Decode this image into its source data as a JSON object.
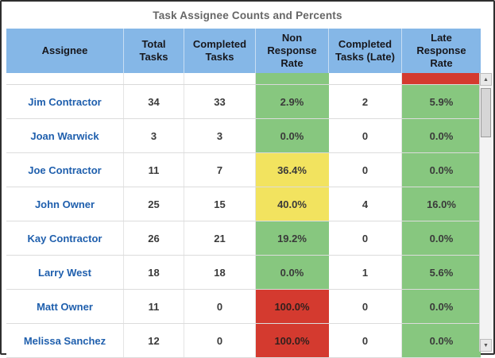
{
  "title": "Task Assignee Counts and Percents",
  "colors": {
    "header_bg": "#85b7e7",
    "green": "#87c77f",
    "yellow": "#f2e35f",
    "red": "#d43a2f",
    "assignee_text": "#1f5fad",
    "title_text": "#666666"
  },
  "table": {
    "columns": [
      "Assignee",
      "Total Tasks",
      "Completed Tasks",
      "Non Response Rate",
      "Completed Tasks (Late)",
      "Late Response Rate"
    ],
    "partial_row": {
      "non_response_color": "green",
      "late_color": "red"
    },
    "rows": [
      {
        "assignee": "Jim Contractor",
        "total": "34",
        "completed": "33",
        "non_response_rate": "2.9%",
        "non_response_color": "green",
        "completed_late": "2",
        "late_rate": "5.9%",
        "late_color": "green"
      },
      {
        "assignee": "Joan Warwick",
        "total": "3",
        "completed": "3",
        "non_response_rate": "0.0%",
        "non_response_color": "green",
        "completed_late": "0",
        "late_rate": "0.0%",
        "late_color": "green"
      },
      {
        "assignee": "Joe Contractor",
        "total": "11",
        "completed": "7",
        "non_response_rate": "36.4%",
        "non_response_color": "yellow",
        "completed_late": "0",
        "late_rate": "0.0%",
        "late_color": "green"
      },
      {
        "assignee": "John Owner",
        "total": "25",
        "completed": "15",
        "non_response_rate": "40.0%",
        "non_response_color": "yellow",
        "completed_late": "4",
        "late_rate": "16.0%",
        "late_color": "green"
      },
      {
        "assignee": "Kay Contractor",
        "total": "26",
        "completed": "21",
        "non_response_rate": "19.2%",
        "non_response_color": "green",
        "completed_late": "0",
        "late_rate": "0.0%",
        "late_color": "green"
      },
      {
        "assignee": "Larry West",
        "total": "18",
        "completed": "18",
        "non_response_rate": "0.0%",
        "non_response_color": "green",
        "completed_late": "1",
        "late_rate": "5.6%",
        "late_color": "green"
      },
      {
        "assignee": "Matt Owner",
        "total": "11",
        "completed": "0",
        "non_response_rate": "100.0%",
        "non_response_color": "red",
        "completed_late": "0",
        "late_rate": "0.0%",
        "late_color": "green"
      },
      {
        "assignee": "Melissa Sanchez",
        "total": "12",
        "completed": "0",
        "non_response_rate": "100.0%",
        "non_response_color": "red",
        "completed_late": "0",
        "late_rate": "0.0%",
        "late_color": "green"
      }
    ]
  },
  "scrollbar": {
    "up_icon": "▲",
    "down_icon": "▼"
  }
}
